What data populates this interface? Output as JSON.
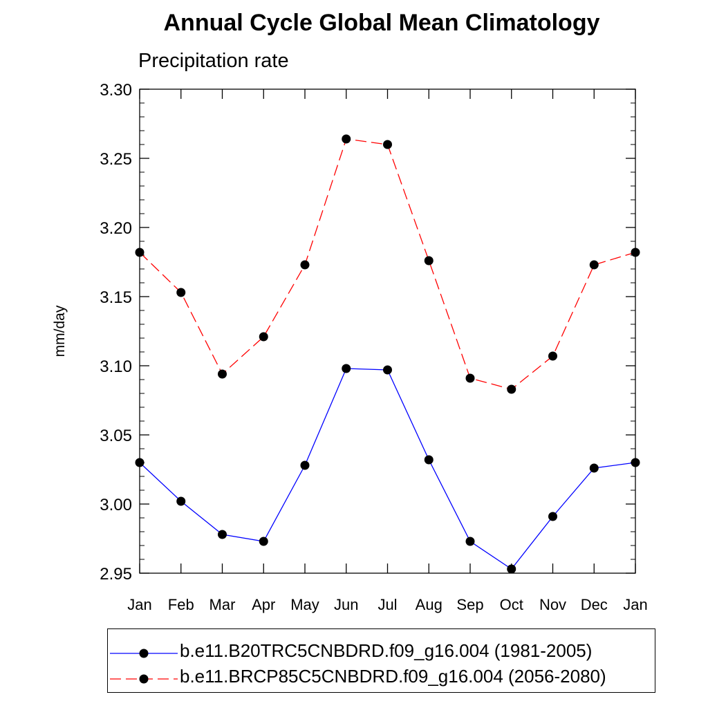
{
  "chart_data": {
    "type": "line",
    "title": "Annual Cycle Global Mean Climatology",
    "subtitle": "Precipitation rate",
    "xlabel": "",
    "ylabel": "mm/day",
    "categories": [
      "Jan",
      "Feb",
      "Mar",
      "Apr",
      "May",
      "Jun",
      "Jul",
      "Aug",
      "Sep",
      "Oct",
      "Nov",
      "Dec",
      "Jan"
    ],
    "ylim": [
      2.95,
      3.3
    ],
    "yticks": [
      "2.95",
      "3.00",
      "3.05",
      "3.10",
      "3.15",
      "3.20",
      "3.25",
      "3.30"
    ],
    "grid": false,
    "legend_position": "bottom",
    "series": [
      {
        "name": "b.e11.B20TRC5CNBDRD.f09_g16.004 (1981-2005)",
        "color": "#0000ff",
        "line_style": "solid",
        "marker": "filled-circle",
        "values": [
          3.03,
          3.002,
          2.978,
          2.973,
          3.028,
          3.098,
          3.097,
          3.032,
          2.973,
          2.953,
          2.991,
          3.026,
          3.03
        ]
      },
      {
        "name": "b.e11.BRCP85C5CNBDRD.f09_g16.004 (2056-2080)",
        "color": "#ff0000",
        "line_style": "dashed",
        "marker": "filled-circle",
        "values": [
          3.182,
          3.153,
          3.094,
          3.121,
          3.173,
          3.264,
          3.26,
          3.176,
          3.091,
          3.083,
          3.107,
          3.173,
          3.182
        ]
      }
    ]
  }
}
